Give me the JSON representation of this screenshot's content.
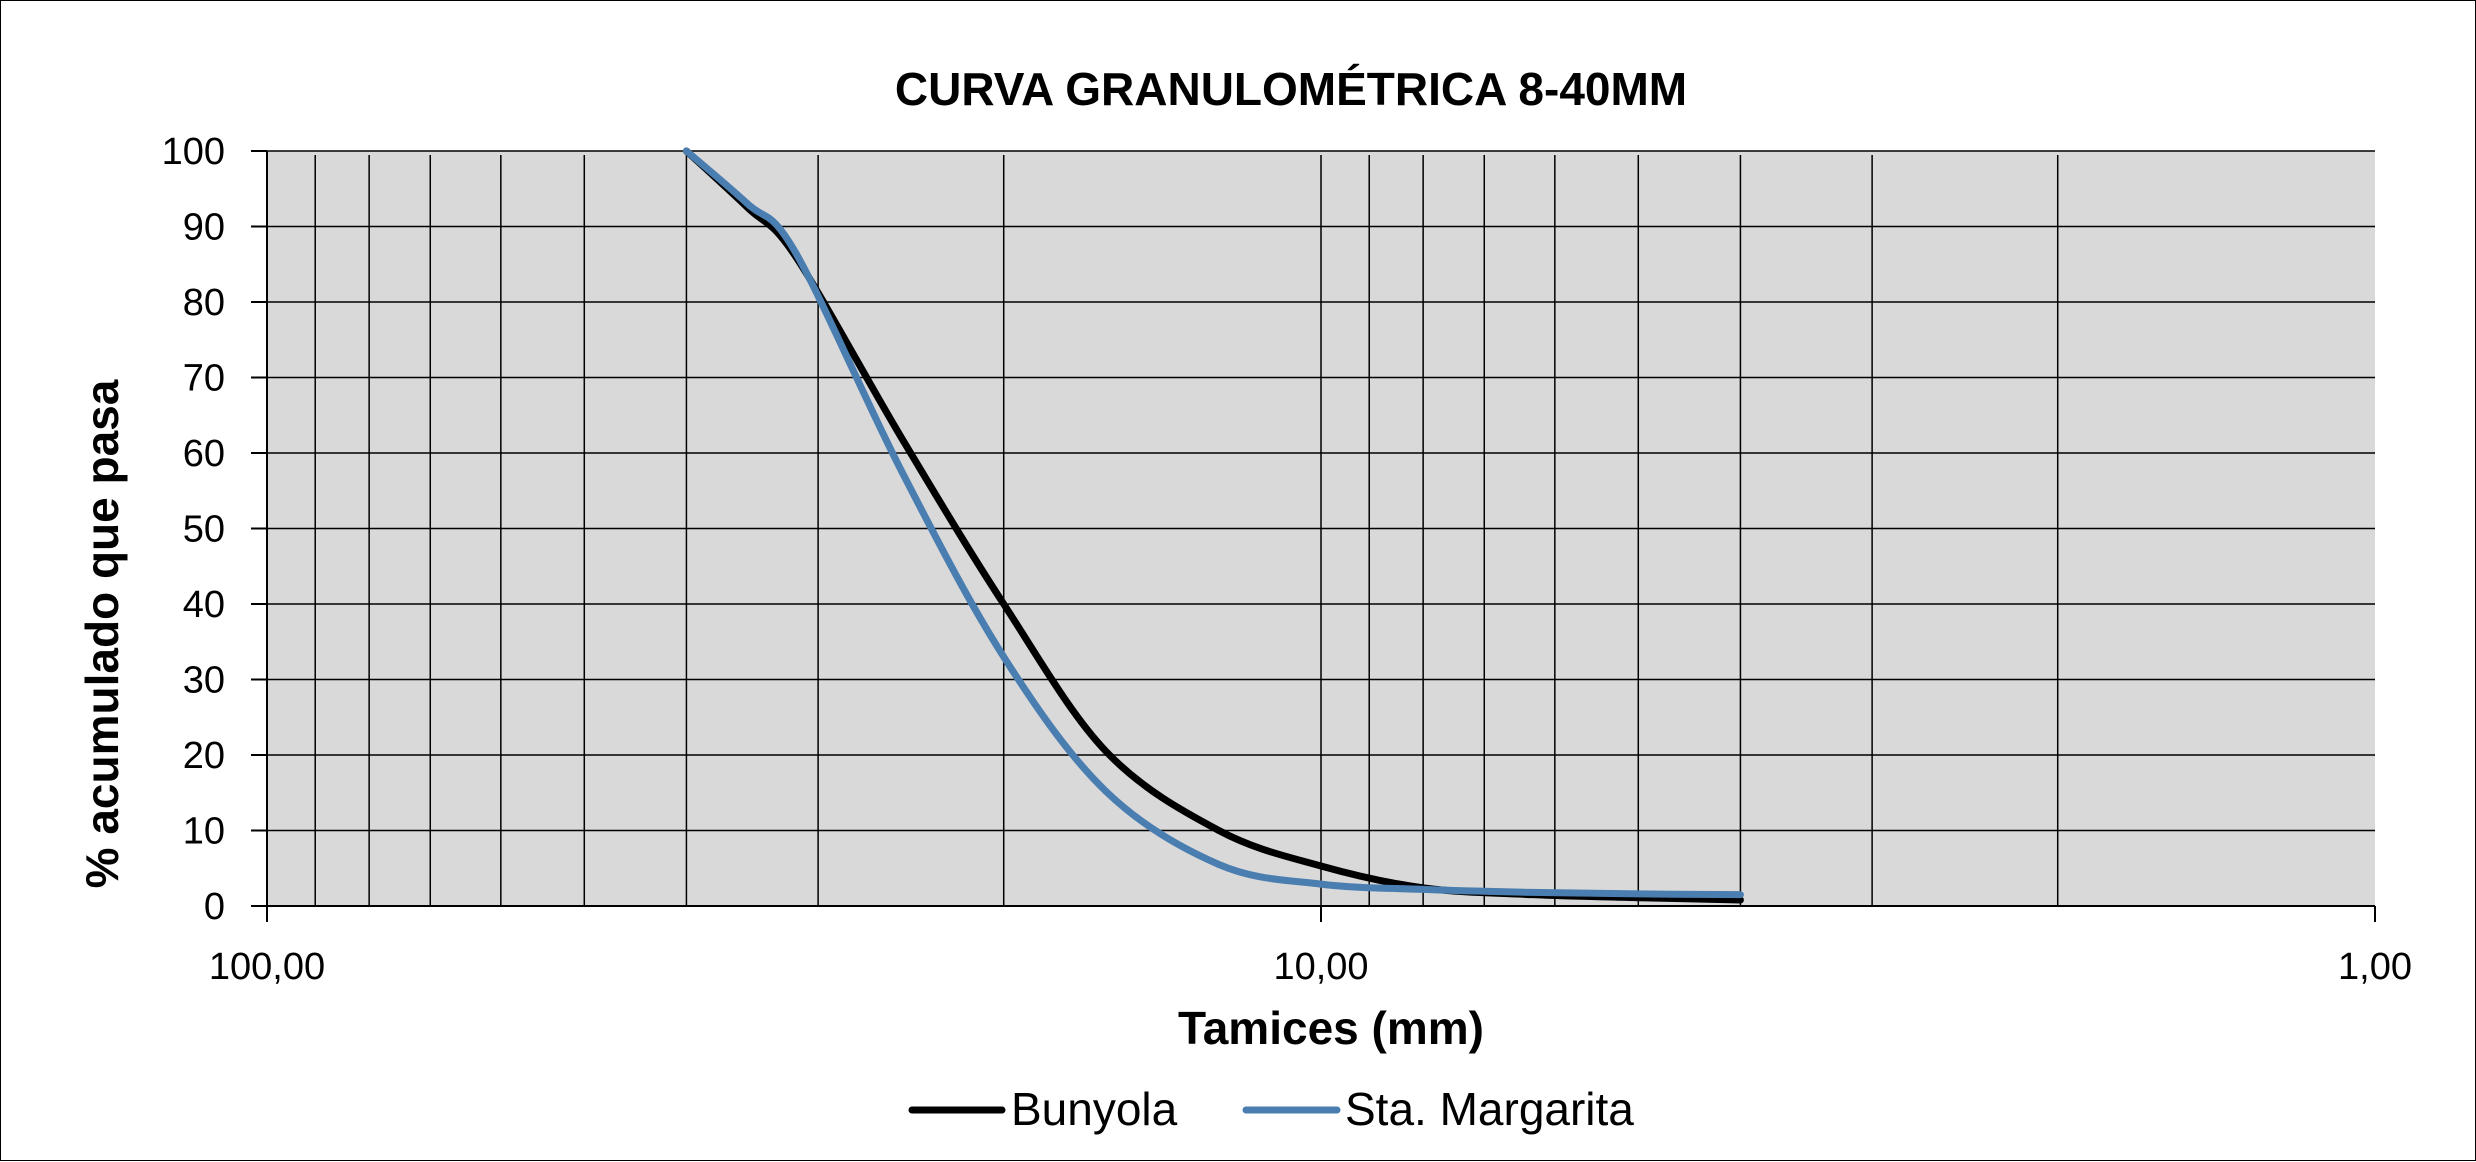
{
  "chart_data": {
    "type": "line",
    "title": "CURVA GRANULOMÉTRICA 8-40MM",
    "xlabel": "Tamices (mm)",
    "ylabel": "% acumulado que pasa",
    "x_scale": "log",
    "x_reversed": true,
    "xlim": [
      100,
      1
    ],
    "ylim": [
      0,
      100
    ],
    "x_tick_labels": [
      "100,00",
      "10,00",
      "1,00"
    ],
    "x_ticks": [
      100,
      10,
      1
    ],
    "y_ticks": [
      0,
      10,
      20,
      30,
      40,
      50,
      60,
      70,
      80,
      90,
      100
    ],
    "grid": true,
    "x_minor_grid": [
      90,
      80,
      70,
      60,
      50,
      40,
      30,
      20,
      9,
      8,
      7,
      6,
      5,
      4,
      3,
      2
    ],
    "legend_position": "bottom",
    "x": [
      40,
      35,
      31.5,
      25,
      20,
      16,
      12.5,
      10,
      8,
      6.3,
      5,
      4
    ],
    "series": [
      {
        "name": "Bunyola",
        "color": "#000000",
        "values": [
          100,
          92.5,
          86,
          62,
          40,
          20.5,
          10,
          5.3,
          2.4,
          1.5,
          1.1,
          0.8
        ]
      },
      {
        "name": "Sta. Margarita",
        "color": "#4a7eb0",
        "values": [
          100,
          93,
          86.5,
          57.6,
          33,
          15.2,
          5.5,
          2.9,
          2.2,
          1.8,
          1.6,
          1.5
        ]
      }
    ]
  },
  "style": {
    "plot_bg": "#d9d9d9",
    "grid_color": "#000000"
  }
}
